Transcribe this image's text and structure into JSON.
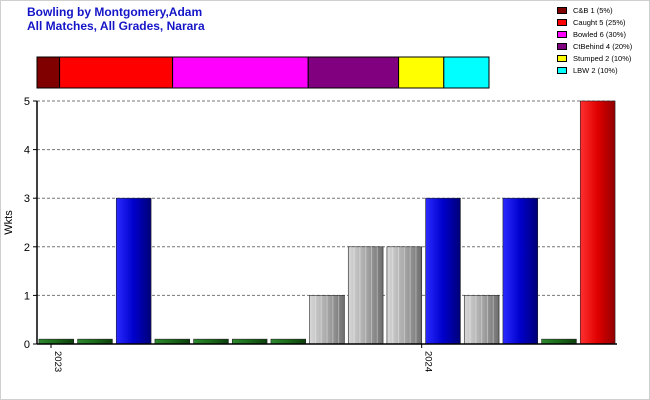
{
  "title": "Bowling by Montgomery,Adam",
  "subtitle": "All Matches, All Grades, Narara",
  "chart_data": {
    "type": "bar",
    "ylabel": "Wkts",
    "ylim": [
      0,
      5
    ],
    "yticks": [
      0,
      1,
      2,
      3,
      4,
      5
    ],
    "grid": true,
    "x_labels": [
      {
        "text": "2023",
        "index": 0
      },
      {
        "text": "2024",
        "index": 9
      }
    ],
    "values": [
      0.1,
      0.1,
      3,
      0.1,
      0.1,
      0.1,
      0.1,
      1,
      2,
      2,
      3,
      1,
      3,
      0.1,
      5
    ],
    "bar_colors": [
      "#1a6a1a",
      "#1a6a1a",
      "#0000cc",
      "#1a6a1a",
      "#1a6a1a",
      "#1a6a1a",
      "#1a6a1a",
      "#a8a8a8",
      "#a8a8a8",
      "#a8a8a8",
      "#0000cc",
      "#a8a8a8",
      "#0000cc",
      "#1a6a1a",
      "#e00000"
    ],
    "dismissal_breakdown": [
      {
        "label": "C&B 1 (5%)",
        "value": 5,
        "color": "#800000"
      },
      {
        "label": "Caught 5 (25%)",
        "value": 25,
        "color": "#ff0000"
      },
      {
        "label": "Bowled 6 (30%)",
        "value": 30,
        "color": "#ff00ff"
      },
      {
        "label": "CtBehind 4 (20%)",
        "value": 20,
        "color": "#800080"
      },
      {
        "label": "Stumped 2 (10%)",
        "value": 10,
        "color": "#ffff00"
      },
      {
        "label": "LBW 2 (10%)",
        "value": 10,
        "color": "#00ffff"
      }
    ],
    "legend_position": "top-right"
  }
}
